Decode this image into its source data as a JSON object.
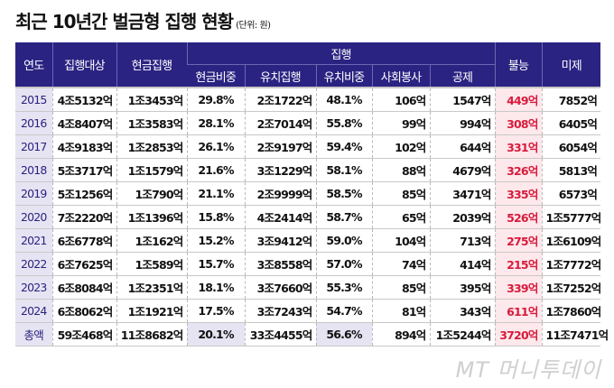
{
  "title": "최근 10년간 벌금형 집행 현황",
  "unit": "(단위: 원)",
  "headers": {
    "year": "연도",
    "target": "집행대상",
    "cash": "현금집행",
    "exec_group": "집행",
    "cash_ratio": "현금비중",
    "detain": "유치집행",
    "detain_ratio": "유치비중",
    "service": "사회봉사",
    "deduct": "공제",
    "fail": "불능",
    "unpaid": "미제"
  },
  "rows": [
    [
      "2015",
      "4조5132억",
      "1조3453억",
      "29.8%",
      "2조1722억",
      "48.1%",
      "106억",
      "1547억",
      "449억",
      "7852억"
    ],
    [
      "2016",
      "4조8407억",
      "1조3583억",
      "28.1%",
      "2조7014억",
      "55.8%",
      "99억",
      "994억",
      "308억",
      "6405억"
    ],
    [
      "2017",
      "4조9183억",
      "1조2853억",
      "26.1%",
      "2조9197억",
      "59.4%",
      "102억",
      "644억",
      "331억",
      "6054억"
    ],
    [
      "2018",
      "5조3717억",
      "1조1579억",
      "21.6%",
      "3조1229억",
      "58.1%",
      "88억",
      "4679억",
      "326억",
      "5813억"
    ],
    [
      "2019",
      "5조1256억",
      "1조790억",
      "21.1%",
      "2조9999억",
      "58.5%",
      "85억",
      "3471억",
      "335억",
      "6573억"
    ],
    [
      "2020",
      "7조2220억",
      "1조1396억",
      "15.8%",
      "4조2414억",
      "58.7%",
      "65억",
      "2039억",
      "526억",
      "1조5777억"
    ],
    [
      "2021",
      "6조6778억",
      "1조162억",
      "15.2%",
      "3조9412억",
      "59.0%",
      "104억",
      "713억",
      "275억",
      "1조6109억"
    ],
    [
      "2022",
      "6조7625억",
      "1조589억",
      "15.7%",
      "3조8558억",
      "57.0%",
      "74억",
      "414억",
      "215억",
      "1조7772억"
    ],
    [
      "2023",
      "6조8084억",
      "1조2351억",
      "18.1%",
      "3조7660억",
      "55.3%",
      "85억",
      "395억",
      "339억",
      "1조7252억"
    ],
    [
      "2024",
      "6조8062억",
      "1조1921억",
      "17.5%",
      "3조7243억",
      "54.7%",
      "81억",
      "343억",
      "611억",
      "1조7860억"
    ],
    [
      "총액",
      "59조468억",
      "11조8682억",
      "20.1%",
      "33조4455억",
      "56.6%",
      "894억",
      "1조5244억",
      "3720억",
      "11조7471억"
    ]
  ],
  "watermark": "MT 머니투데이",
  "colors": {
    "header": "#2b2382",
    "fail_text": "#d81b3c",
    "fail_bg": "#fde8ec",
    "year_bg": "#e6e4f2"
  }
}
